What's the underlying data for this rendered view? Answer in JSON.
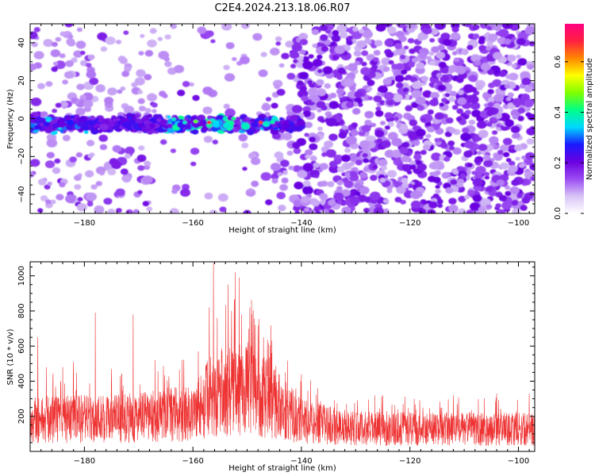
{
  "title": "C2E4.2024.213.18.06.R07",
  "chart_data": [
    {
      "type": "heatmap",
      "xlabel": "Height of straight line (km)",
      "ylabel": "Frequency (Hz)",
      "xlim": [
        -190,
        -97
      ],
      "ylim": [
        -50,
        50
      ],
      "xticks": [
        -180,
        -160,
        -140,
        -120,
        -100
      ],
      "yticks": [
        -40,
        -20,
        0,
        20,
        40
      ],
      "grid": false,
      "signal_band": {
        "x_start": -190,
        "x_end": -140,
        "frequency_center": -3,
        "frequency_halfwidth": 5
      },
      "colorbar": {
        "label": "Normalized spectral amplitude",
        "range": [
          0,
          0.75
        ],
        "ticks": [
          0.0,
          0.2,
          0.4,
          0.6
        ],
        "tick_labels": [
          "0.0",
          "0.2",
          "0.4",
          "0.6"
        ],
        "colormap": [
          "#ffffff",
          "#d8c4f6",
          "#9b4cf2",
          "#6a00e0",
          "#1a1aff",
          "#00d8ff",
          "#00ff88",
          "#7fff00",
          "#ffff00",
          "#ff8800",
          "#ff2040",
          "#ff0080"
        ]
      }
    },
    {
      "type": "line",
      "xlabel": "Height of straight line (km)",
      "ylabel": "SNR (10 * v/v)",
      "xlim": [
        -190,
        -97
      ],
      "ylim": [
        0,
        1080
      ],
      "xticks": [
        -180,
        -160,
        -140,
        -120,
        -100
      ],
      "yticks": [
        200,
        400,
        600,
        800,
        1000
      ],
      "grid": false,
      "line_color": "#ee3333",
      "noise_baseline": [
        {
          "x": -190,
          "y": 180
        },
        {
          "x": -170,
          "y": 190
        },
        {
          "x": -160,
          "y": 220
        },
        {
          "x": -156,
          "y": 330
        },
        {
          "x": -150,
          "y": 360
        },
        {
          "x": -145,
          "y": 280
        },
        {
          "x": -140,
          "y": 170
        },
        {
          "x": -130,
          "y": 130
        },
        {
          "x": -97,
          "y": 125
        }
      ],
      "peaks": [
        {
          "x": -188.6,
          "y": 650
        },
        {
          "x": -187,
          "y": 480
        },
        {
          "x": -184,
          "y": 480
        },
        {
          "x": -182,
          "y": 510
        },
        {
          "x": -178,
          "y": 790
        },
        {
          "x": -175,
          "y": 470
        },
        {
          "x": -171,
          "y": 780
        },
        {
          "x": -167,
          "y": 520
        },
        {
          "x": -162,
          "y": 520
        },
        {
          "x": -159,
          "y": 570
        },
        {
          "x": -157,
          "y": 820
        },
        {
          "x": -156.2,
          "y": 1075
        },
        {
          "x": -155.5,
          "y": 760
        },
        {
          "x": -153.5,
          "y": 950
        },
        {
          "x": -152.2,
          "y": 1020
        },
        {
          "x": -151.5,
          "y": 990
        },
        {
          "x": -151,
          "y": 780
        },
        {
          "x": -149.5,
          "y": 820
        },
        {
          "x": -148.5,
          "y": 720
        },
        {
          "x": -147,
          "y": 650
        },
        {
          "x": -145.5,
          "y": 560
        },
        {
          "x": -143,
          "y": 450
        },
        {
          "x": -140,
          "y": 440
        },
        {
          "x": -137,
          "y": 360
        },
        {
          "x": -125,
          "y": 320
        },
        {
          "x": -112,
          "y": 320
        },
        {
          "x": -104,
          "y": 330
        },
        {
          "x": -98,
          "y": 330
        }
      ]
    }
  ]
}
